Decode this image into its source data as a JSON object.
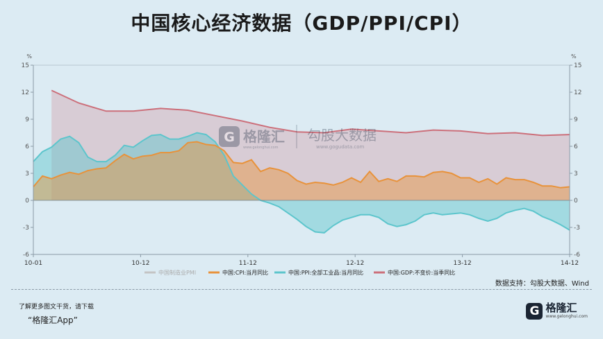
{
  "header": {
    "title": "中国核心经济数据（GDP/PPI/CPI）"
  },
  "watermark": {
    "brand": "格隆汇",
    "brand_url": "www.gelonghui.com",
    "text": "勾股大数据",
    "text_url": "www.gogudata.com"
  },
  "source": "数据支持：勾股大数据、Wind",
  "footer": {
    "line1": "了解更多图文干货，请下载",
    "line2": "“格隆汇App”"
  },
  "logo": {
    "name": "格隆汇",
    "url": "www.gelonghui.com"
  },
  "colors": {
    "pmi": "#c4c4c4",
    "cpi": "#e8923a",
    "ppi": "#5cc5cc",
    "gdp": "#cc6f7a",
    "background": "#dcebf3"
  },
  "chart_data": {
    "type": "area",
    "xlabels": [
      "10-01",
      "10-12",
      "11-12",
      "12-12",
      "13-12",
      "14-12"
    ],
    "ylim": [
      -6,
      15
    ],
    "yticks": [
      -6,
      -3,
      0,
      3,
      6,
      9,
      12,
      15
    ],
    "yunit": "%",
    "grid": false,
    "legend": {
      "position": "bottom"
    },
    "series": [
      {
        "name": "中国制造业PMI",
        "color": "#c4c4c4",
        "values": []
      },
      {
        "name": "中国:CPI:当月同比",
        "values": [
          1.5,
          2.7,
          2.4,
          2.8,
          3.1,
          2.9,
          3.3,
          3.5,
          3.6,
          4.4,
          5.1,
          4.6,
          4.9,
          5.0,
          5.3,
          5.3,
          5.5,
          6.4,
          6.5,
          6.2,
          6.1,
          5.5,
          4.2,
          4.1,
          4.5,
          3.2,
          3.6,
          3.4,
          3.0,
          2.2,
          1.8,
          2.0,
          1.9,
          1.7,
          2.0,
          2.5,
          2.0,
          3.2,
          2.1,
          2.4,
          2.1,
          2.7,
          2.7,
          2.6,
          3.1,
          3.2,
          3.0,
          2.5,
          2.5,
          2.0,
          2.4,
          1.8,
          2.5,
          2.3,
          2.3,
          2.0,
          1.6,
          1.6,
          1.4,
          1.5
        ]
      },
      {
        "name": "中国:PPI:全部工业品:当月同比",
        "values": [
          4.3,
          5.4,
          5.9,
          6.8,
          7.1,
          6.4,
          4.8,
          4.3,
          4.3,
          5.0,
          6.1,
          5.9,
          6.6,
          7.2,
          7.3,
          6.8,
          6.8,
          7.1,
          7.5,
          7.3,
          6.5,
          5.0,
          2.7,
          1.7,
          0.7,
          0.0,
          -0.3,
          -0.7,
          -1.4,
          -2.1,
          -2.9,
          -3.5,
          -3.6,
          -2.8,
          -2.2,
          -1.9,
          -1.6,
          -1.6,
          -1.9,
          -2.6,
          -2.9,
          -2.7,
          -2.3,
          -1.6,
          -1.4,
          -1.6,
          -1.5,
          -1.4,
          -1.6,
          -2.0,
          -2.3,
          -2.0,
          -1.4,
          -1.1,
          -0.9,
          -1.2,
          -1.8,
          -2.2,
          -2.7,
          -3.3
        ]
      },
      {
        "name": "中国:GDP:不变价:当季同比",
        "x_months": [
          2,
          5,
          8,
          11,
          14,
          17,
          20,
          23,
          26,
          29,
          32,
          35,
          38,
          41,
          44,
          47,
          50,
          53,
          56,
          59
        ],
        "values": [
          12.2,
          10.8,
          9.9,
          9.9,
          10.2,
          10.0,
          9.4,
          8.8,
          8.1,
          7.6,
          7.5,
          7.9,
          7.7,
          7.5,
          7.8,
          7.7,
          7.4,
          7.5,
          7.2,
          7.3
        ]
      }
    ]
  }
}
